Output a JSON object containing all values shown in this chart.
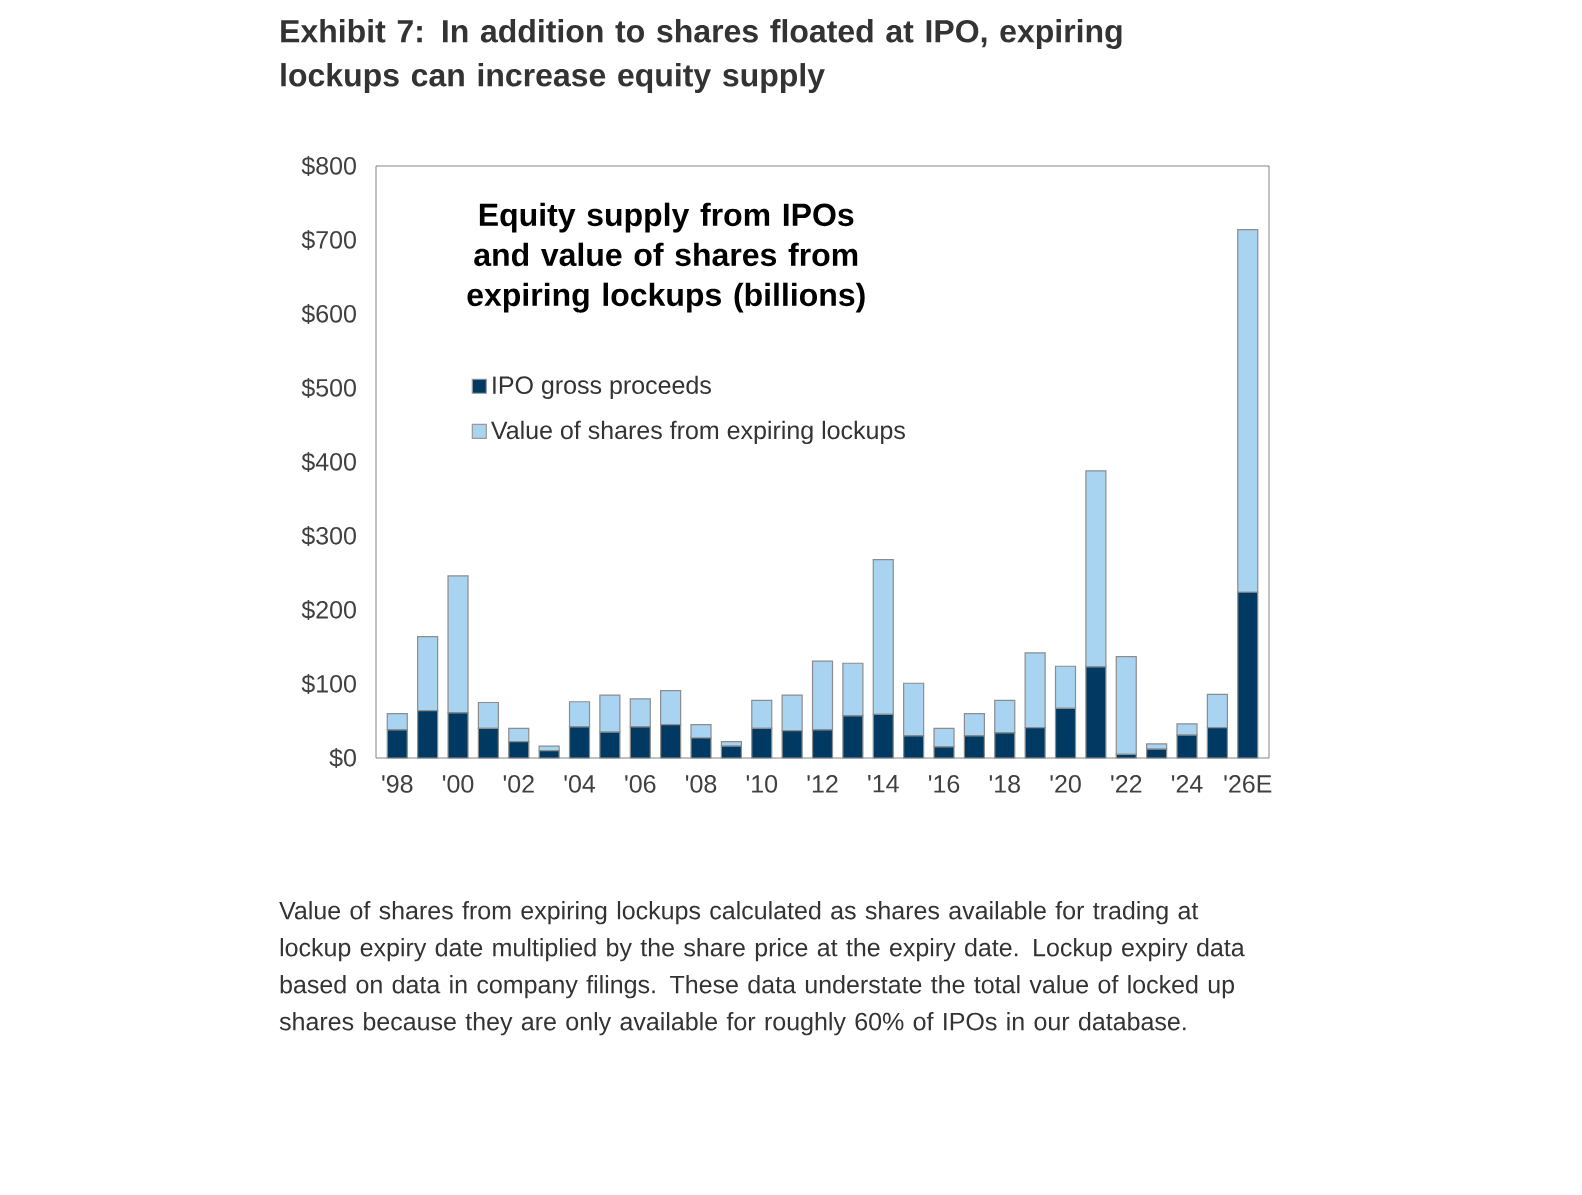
{
  "chart_data": {
    "type": "bar",
    "stacked": true,
    "title": "Exhibit 7: In addition to shares floated at IPO, expiring lockups can increase equity supply",
    "subtitle": "Equity supply from IPOs and value of shares from expiring lockups (billions)",
    "categories": [
      "'98",
      null,
      "'00",
      null,
      "'02",
      null,
      "'04",
      null,
      "'06",
      null,
      "'08",
      null,
      "'10",
      null,
      "'12",
      null,
      "'14",
      null,
      "'16",
      null,
      "'18",
      null,
      "'20",
      null,
      "'22",
      null,
      "'24",
      null,
      "'26E"
    ],
    "series": [
      {
        "name": "IPO gross proceeds",
        "color": "#003a63",
        "values": [
          38,
          64,
          61,
          40,
          22,
          10,
          42,
          35,
          42,
          45,
          27,
          16,
          40,
          37,
          38,
          57,
          59,
          30,
          15,
          30,
          34,
          41,
          67,
          123,
          5,
          12,
          31,
          41,
          224
        ]
      },
      {
        "name": "Value of shares from expiring lockups",
        "color": "#a8d4f2",
        "values": [
          22,
          100,
          185,
          35,
          18,
          6,
          34,
          50,
          38,
          46,
          18,
          6,
          38,
          48,
          93,
          71,
          209,
          71,
          25,
          30,
          44,
          101,
          57,
          265,
          132,
          7,
          15,
          45,
          490
        ]
      }
    ],
    "ylim": [
      0,
      800
    ],
    "yticks": [
      {
        "value": 0,
        "label": "$0"
      },
      {
        "value": 100,
        "label": "$100"
      },
      {
        "value": 200,
        "label": "$200"
      },
      {
        "value": 300,
        "label": "$300"
      },
      {
        "value": 400,
        "label": "$400"
      },
      {
        "value": 500,
        "label": "$500"
      },
      {
        "value": 600,
        "label": "$600"
      },
      {
        "value": 700,
        "label": "$700"
      },
      {
        "value": 800,
        "label": "$800"
      }
    ],
    "legend": "top left",
    "annotations": [
      "Value of shares from expiring lockups calculated as shares available for trading at lockup expiry date multiplied by the share price at the expiry date. Lockup expiry data based on data in company filings. These data understate the total value of locked up shares because they are only available for roughly 60% of IPOs in our database."
    ]
  }
}
